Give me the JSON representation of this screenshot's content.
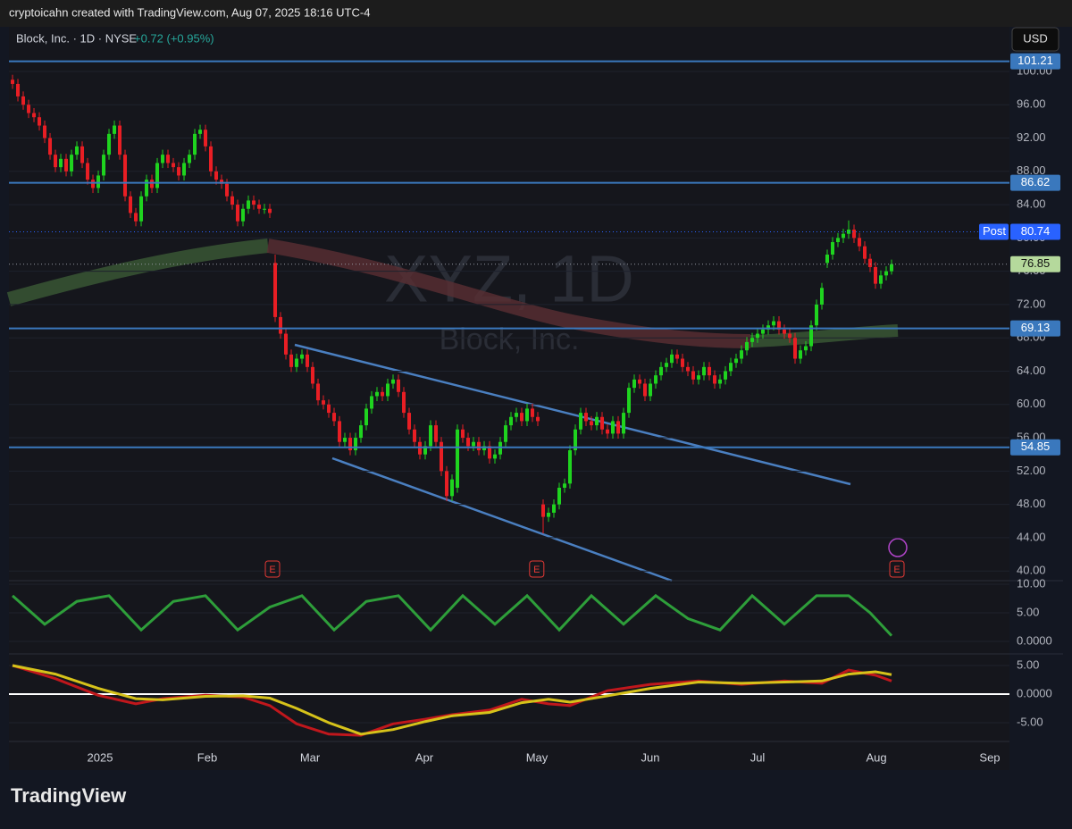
{
  "header": {
    "text": "cryptoicahn created with TradingView.com, Aug 07, 2025 18:16 UTC-4"
  },
  "footer": {
    "logo": "TradingView"
  },
  "chart_data": [
    {
      "type": "candlestick",
      "title": "Block, Inc. · 1D · NYSE",
      "change": "+0.72 (+0.95%)",
      "currency": "USD",
      "watermark": "XYZ, 1D",
      "watermark_subtitle": "Block, Inc.",
      "up_color": "#1fd41f",
      "down_color": "#e91e24",
      "level_color": "#3a78bd",
      "post_color": "#2962ff",
      "last_color": "#b5d99c",
      "open": [
        99,
        98.5,
        97,
        96,
        95,
        94.5,
        93.5,
        92,
        90,
        88.5,
        89.5,
        88,
        90,
        91,
        89,
        87,
        86,
        87.5,
        90,
        92.5,
        93.5,
        90,
        85,
        83,
        82,
        85,
        87,
        86,
        89,
        90,
        89,
        88.5,
        87.5,
        89,
        90,
        92.5,
        93,
        91,
        88,
        87,
        86.5,
        85,
        84,
        82,
        83.5,
        84.5,
        84,
        83.5,
        83.5,
        77,
        70.5,
        68.5,
        66,
        64.5,
        65.5,
        66,
        64.5,
        62.5,
        60.5,
        60,
        59,
        58,
        55.5,
        56,
        54.5,
        56,
        57.5,
        59.5,
        61,
        61.5,
        61,
        62.5,
        63,
        61.5,
        59,
        57,
        55.5,
        54,
        55,
        57.5,
        55.5,
        52,
        49,
        50,
        57,
        56,
        55,
        55.5,
        54.5,
        55,
        53.5,
        54,
        55.5,
        57.5,
        58.5,
        59,
        58,
        59.5,
        58.5,
        48,
        46.5,
        47,
        48,
        50,
        50.5,
        54.5,
        57,
        59,
        58,
        57.5,
        58.5,
        57,
        56.5,
        58,
        56.5,
        59,
        62,
        63,
        62.5,
        61,
        62.5,
        63.5,
        64.5,
        65,
        66,
        65.5,
        64.5,
        64,
        63,
        63.5,
        64.5,
        63.5,
        62.5,
        63,
        64,
        65,
        65.5,
        66.5,
        67.5,
        68,
        68.5,
        69,
        69.5,
        70,
        69,
        68.5,
        68,
        65.5,
        66.5,
        67,
        69.5,
        72,
        77,
        78,
        79.5,
        80,
        80.5,
        81,
        80,
        79,
        77.5,
        76.5,
        74.5,
        75.5,
        76
      ],
      "high": [
        99.6,
        99.1,
        97.6,
        96.6,
        95.6,
        95.1,
        94.1,
        92.6,
        90.6,
        90.1,
        90.1,
        90.6,
        91.6,
        91.6,
        89.6,
        87.6,
        88.1,
        90.6,
        93.1,
        94.1,
        94.1,
        90.6,
        85.6,
        83.6,
        85.6,
        87.6,
        87.6,
        89.6,
        90.6,
        90.6,
        89.6,
        89.1,
        89.6,
        90.6,
        93.1,
        93.6,
        93.6,
        91.6,
        88.6,
        87.6,
        87.1,
        85.6,
        84.6,
        84.1,
        85.1,
        85.1,
        84.6,
        84.1,
        84.1,
        78,
        71.1,
        69.1,
        66.6,
        66.1,
        66.6,
        66.6,
        65.1,
        63.1,
        61.1,
        60.6,
        59.6,
        58.6,
        56.6,
        56.6,
        56.6,
        58.1,
        60.1,
        61.6,
        62.1,
        62.1,
        63.1,
        63.6,
        63.6,
        62.1,
        59.6,
        57.6,
        56.1,
        55.6,
        58.1,
        58.1,
        56.1,
        52.6,
        51.6,
        57.6,
        57.6,
        56.6,
        56.1,
        56.1,
        55.6,
        55.6,
        54.6,
        56.1,
        58.1,
        59.1,
        59.6,
        59.6,
        60.1,
        60.1,
        59.1,
        48.6,
        47.6,
        48.6,
        50.6,
        51.1,
        55.1,
        57.6,
        59.6,
        59.6,
        58.6,
        59.1,
        59.1,
        57.6,
        58.6,
        58.6,
        59.6,
        62.6,
        63.6,
        63.6,
        63.1,
        63.1,
        64.1,
        65.1,
        65.6,
        66.6,
        66.6,
        66.1,
        65.1,
        64.6,
        64.1,
        65.1,
        65.1,
        64.1,
        63.6,
        64.6,
        65.6,
        66.1,
        67.1,
        68.1,
        68.6,
        69.1,
        69.6,
        70.1,
        70.6,
        70.6,
        69.6,
        69.1,
        68.6,
        67.1,
        67.6,
        70.1,
        72.6,
        74.6,
        78.6,
        80.1,
        80.6,
        81.1,
        82.1,
        81.6,
        80.6,
        79.6,
        78.1,
        77.1,
        76.1,
        76.6,
        77.4
      ],
      "low": [
        97.9,
        96.4,
        95.4,
        94.4,
        93.9,
        92.9,
        91.4,
        89.4,
        87.9,
        87.9,
        87.4,
        87.4,
        89.4,
        88.4,
        86.4,
        85.4,
        85.4,
        86.9,
        89.4,
        91.9,
        89.4,
        84.4,
        82.4,
        81.4,
        81.4,
        84.4,
        85.4,
        85.4,
        88.4,
        88.4,
        87.9,
        86.9,
        86.9,
        88.4,
        89.4,
        91.9,
        90.4,
        87.4,
        86.4,
        85.9,
        84.4,
        83.4,
        81.4,
        81.4,
        82.9,
        83.4,
        82.9,
        82.9,
        82.4,
        69.9,
        67.9,
        65.4,
        63.9,
        63.9,
        64.9,
        63.9,
        61.9,
        59.9,
        59.4,
        58.4,
        57.4,
        54.9,
        54.9,
        53.9,
        53.9,
        55.4,
        56.9,
        58.9,
        60.4,
        60.4,
        60.4,
        61.9,
        60.9,
        58.4,
        56.4,
        54.9,
        53.4,
        53.4,
        54.4,
        54.9,
        51.4,
        48.4,
        48.4,
        49.4,
        55.4,
        54.4,
        54.4,
        53.9,
        53.9,
        52.9,
        52.9,
        53.4,
        54.9,
        56.9,
        57.9,
        57.4,
        57.4,
        57.9,
        57.4,
        44.5,
        45.9,
        46.4,
        47.4,
        49.4,
        49.9,
        53.9,
        56.4,
        57.4,
        56.9,
        56.9,
        56.4,
        55.9,
        55.9,
        55.9,
        55.9,
        58.4,
        61.4,
        61.9,
        60.4,
        60.4,
        61.9,
        62.9,
        63.9,
        64.4,
        64.9,
        63.9,
        63.4,
        62.4,
        62.4,
        62.9,
        62.9,
        61.9,
        61.9,
        62.4,
        63.4,
        64.4,
        64.9,
        65.9,
        66.9,
        67.4,
        67.9,
        68.4,
        68.9,
        68.4,
        67.9,
        67.4,
        64.9,
        64.9,
        65.9,
        66.4,
        68.9,
        71.4,
        76.4,
        77.4,
        78.9,
        79.4,
        79.9,
        79.4,
        78.4,
        76.9,
        75.9,
        73.9,
        73.9,
        74.9,
        75.6
      ],
      "close": [
        98.5,
        97,
        96,
        95,
        94.5,
        93.5,
        92,
        90,
        88.5,
        89.5,
        88,
        90,
        91,
        89,
        87,
        86,
        87.5,
        90,
        92.5,
        93.5,
        90,
        85,
        83,
        82,
        85,
        87,
        86,
        89,
        90,
        89,
        88.5,
        87.5,
        89,
        90,
        92.5,
        93,
        91,
        88,
        87,
        86.5,
        85,
        84,
        82,
        83.5,
        84.5,
        84,
        83.5,
        83.5,
        83,
        70.5,
        68.5,
        66,
        64.5,
        65.5,
        66,
        64.5,
        62.5,
        60.5,
        60,
        59,
        58,
        55.5,
        56,
        54.5,
        56,
        57.5,
        59.5,
        61,
        61.5,
        61,
        62.5,
        63,
        61.5,
        59,
        57,
        55.5,
        54,
        55,
        57.5,
        55.5,
        52,
        49,
        51,
        57,
        56,
        55,
        55.5,
        54.5,
        55,
        53.5,
        54,
        55.5,
        57.5,
        58.5,
        59,
        58,
        59.5,
        58.5,
        58,
        46.5,
        47,
        48,
        50,
        50.5,
        54.5,
        57,
        59,
        58,
        57.5,
        58.5,
        57,
        56.5,
        58,
        56.5,
        59,
        62,
        63,
        62.5,
        61,
        62.5,
        63.5,
        64.5,
        65,
        66,
        65.5,
        64.5,
        64,
        63,
        63.5,
        64.5,
        63.5,
        62.5,
        63,
        64,
        65,
        65.5,
        66.5,
        67.5,
        68,
        68.5,
        69,
        69.5,
        70,
        69,
        68.5,
        68,
        65.5,
        66.5,
        67,
        69.5,
        72,
        74,
        78,
        79.5,
        80,
        80.5,
        81,
        80,
        79,
        77.5,
        76.5,
        74.5,
        75.5,
        76,
        76.85
      ],
      "xlim": [
        -0.67,
        186
      ],
      "xticks": [
        {
          "value": 16.33,
          "label": "2025"
        },
        {
          "value": 36.33,
          "label": "Feb"
        },
        {
          "value": 55.5,
          "label": "Mar"
        },
        {
          "value": 76.83,
          "label": "Apr"
        },
        {
          "value": 97.83,
          "label": "May"
        },
        {
          "value": 119,
          "label": "Jun"
        },
        {
          "value": 139,
          "label": "Jul"
        },
        {
          "value": 161.17,
          "label": "Aug"
        },
        {
          "value": 182.33,
          "label": "Sep"
        }
      ],
      "ylim": [
        38.84,
        105.36
      ],
      "yticks": [
        {
          "value": 40,
          "label": "40.00"
        },
        {
          "value": 44,
          "label": "44.00"
        },
        {
          "value": 48,
          "label": "48.00"
        },
        {
          "value": 52,
          "label": "52.00"
        },
        {
          "value": 56,
          "label": "56.00"
        },
        {
          "value": 60,
          "label": "60.00"
        },
        {
          "value": 64,
          "label": "64.00"
        },
        {
          "value": 68,
          "label": "68.00"
        },
        {
          "value": 72,
          "label": "72.00"
        },
        {
          "value": 76,
          "label": "76.00"
        },
        {
          "value": 80,
          "label": "80.00"
        },
        {
          "value": 84,
          "label": "84.00"
        },
        {
          "value": 88,
          "label": "88.00"
        },
        {
          "value": 92,
          "label": "92.00"
        },
        {
          "value": 96,
          "label": "96.00"
        },
        {
          "value": 100,
          "label": "100.00"
        }
      ],
      "levels": [
        101.21,
        86.62,
        69.13,
        54.85
      ],
      "post": {
        "label": "Post",
        "value": 80.74
      },
      "last": 76.85,
      "earnings": {
        "label": "E",
        "x": [
          48.5,
          97.8,
          165
        ]
      }
    },
    {
      "type": "line",
      "ylim": [
        -2.19,
        10.63
      ],
      "yticks": [
        {
          "value": 0,
          "label": "0.0000"
        },
        {
          "value": 5,
          "label": "5.00"
        },
        {
          "value": 10,
          "label": "10.00"
        }
      ],
      "series": [
        {
          "color": "#2e9e3a",
          "x": [
            0,
            6,
            12,
            18,
            24,
            30,
            36,
            42,
            48,
            54,
            60,
            66,
            72,
            78,
            84,
            90,
            96,
            102,
            108,
            114,
            120,
            126,
            132,
            138,
            144,
            150,
            156,
            160,
            164
          ],
          "values": [
            8,
            3,
            7,
            8,
            2,
            7,
            8,
            2,
            6,
            8,
            2,
            7,
            8,
            2,
            8,
            3,
            8,
            2,
            8,
            3,
            8,
            4,
            2,
            8,
            3,
            8,
            8,
            5,
            1
          ]
        }
      ]
    },
    {
      "type": "line",
      "ylim": [
        -8.28,
        7.03
      ],
      "yticks": [
        {
          "value": -5,
          "label": "-5.00"
        },
        {
          "value": 0,
          "label": "0.0000"
        },
        {
          "value": 5,
          "label": "5.00"
        }
      ],
      "series": [
        {
          "color": "#c0171c",
          "x": [
            0,
            8,
            16,
            23,
            28,
            36,
            43,
            48,
            53,
            59,
            65,
            71,
            77,
            82,
            89,
            95,
            100,
            104,
            111,
            119,
            128,
            136,
            144,
            151,
            156,
            161,
            164
          ],
          "values": [
            5,
            2.7,
            -0.2,
            -1.7,
            -0.8,
            -0.2,
            -0.5,
            -2,
            -5.2,
            -7,
            -7.2,
            -5.2,
            -4.4,
            -3.6,
            -2.8,
            -0.9,
            -1.7,
            -2,
            0.6,
            1.7,
            2.3,
            1.7,
            2.3,
            1.9,
            4.2,
            3.3,
            2.3
          ]
        },
        {
          "color": "#d6c21a",
          "x": [
            0,
            8,
            16,
            23,
            28,
            36,
            43,
            48,
            53,
            59,
            65,
            71,
            77,
            82,
            89,
            95,
            100,
            104,
            111,
            119,
            128,
            136,
            144,
            151,
            156,
            161,
            164
          ],
          "values": [
            5,
            3.5,
            1,
            -0.8,
            -1,
            -0.4,
            -0.3,
            -0.7,
            -2.5,
            -5,
            -7,
            -6.2,
            -4.8,
            -3.8,
            -3.2,
            -1.5,
            -0.9,
            -1.4,
            -0.3,
            1,
            2.1,
            1.9,
            2.1,
            2.3,
            3.5,
            3.9,
            3.4
          ]
        }
      ]
    }
  ]
}
